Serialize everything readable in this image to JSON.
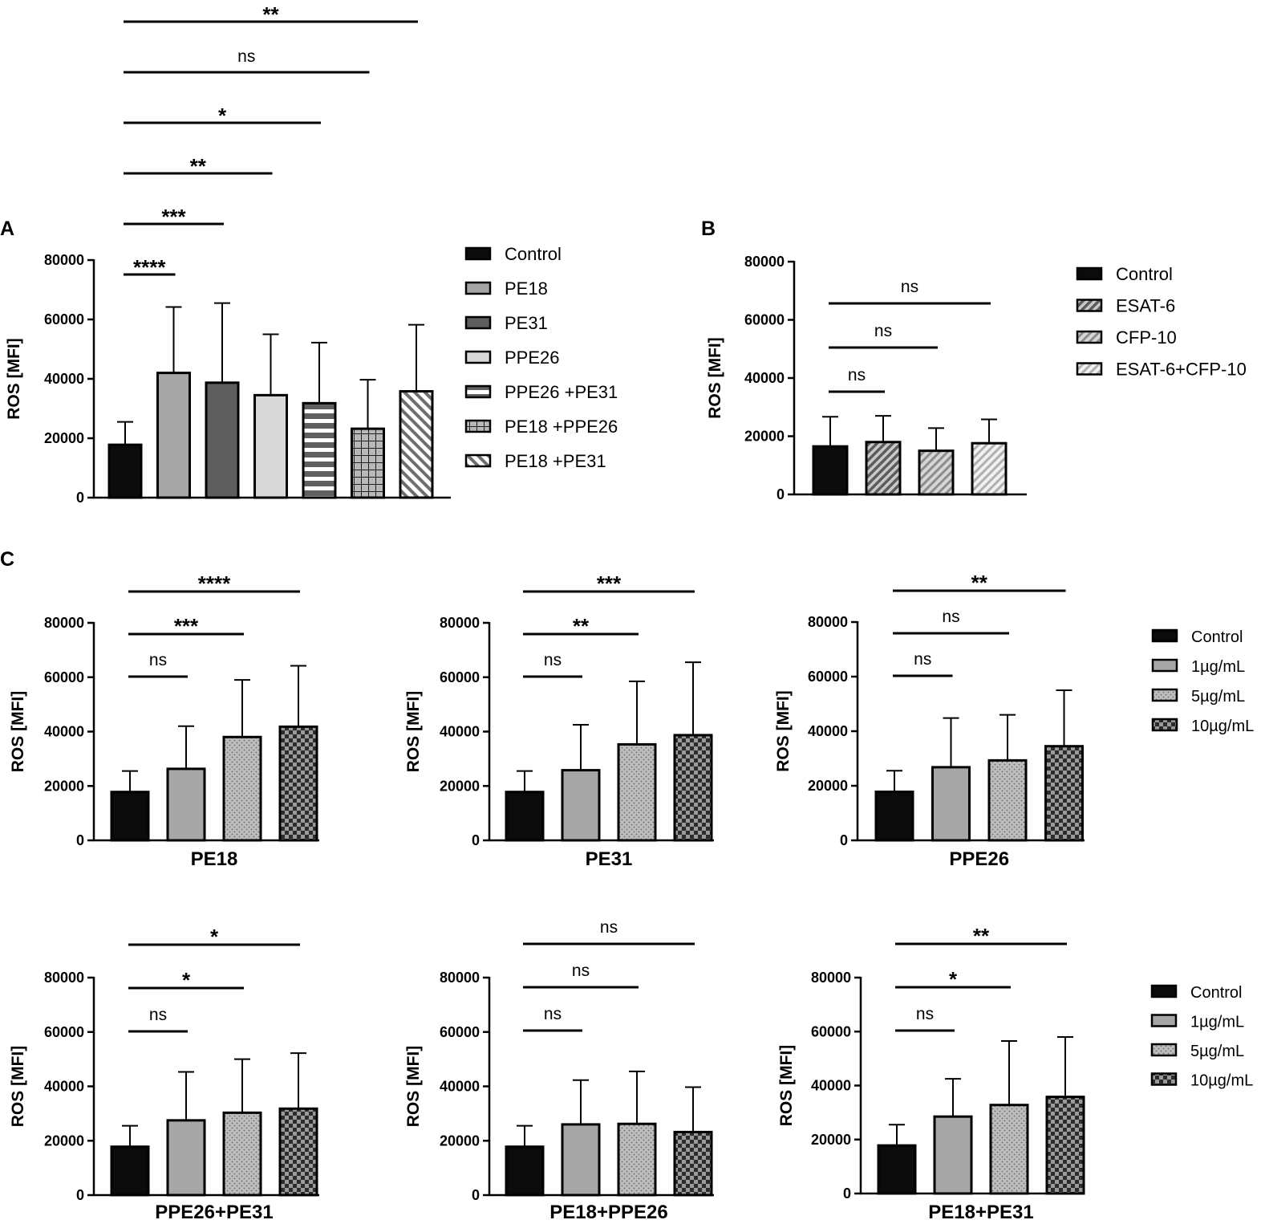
{
  "figure": {
    "panel_labels": {
      "A": "A",
      "B": "B",
      "C": "C"
    },
    "y_ticks": [
      "0",
      "20000",
      "40000",
      "60000",
      "80000"
    ]
  },
  "colors": {
    "black": "#0b0b0b",
    "mid_gray": "#a6a6a6",
    "dark_gray": "#5e5e5e",
    "light_gray": "#d9d9d9",
    "stripe_light": "#ffffff",
    "checker_dark": "#2a2a2a"
  },
  "chart_data": [
    {
      "id": "A",
      "type": "bar",
      "title": "",
      "ylabel": "ROS [MFI]",
      "xlabel": "",
      "ylim": [
        0,
        80000
      ],
      "categories": [
        "Control",
        "PE18",
        "PE31",
        "PPE26",
        "PPE26 +PE31",
        "PE18 +PPE26",
        "PE18 +PE31"
      ],
      "values": [
        17800,
        42000,
        38700,
        34500,
        31800,
        23200,
        35800
      ],
      "error_upper": [
        25500,
        64200,
        65500,
        55000,
        52200,
        39700,
        58200
      ],
      "patterns": [
        "solid-black",
        "solid-mid",
        "solid-dark",
        "solid-light",
        "hstripe",
        "grid",
        "diagonal"
      ],
      "legend": [
        "Control",
        "PE18",
        "PE31",
        "PPE26",
        "PPE26 +PE31",
        "PE18 +PPE26",
        "PE18 +PE31"
      ],
      "significance": [
        {
          "from": 0,
          "to": 1,
          "label": "****"
        },
        {
          "from": 0,
          "to": 2,
          "label": "***"
        },
        {
          "from": 0,
          "to": 3,
          "label": "**"
        },
        {
          "from": 0,
          "to": 4,
          "label": "*"
        },
        {
          "from": 0,
          "to": 5,
          "label": "ns"
        },
        {
          "from": 0,
          "to": 6,
          "label": "**"
        }
      ]
    },
    {
      "id": "B",
      "type": "bar",
      "title": "",
      "ylabel": "ROS [MFI]",
      "xlabel": "",
      "ylim": [
        0,
        80000
      ],
      "categories": [
        "Control",
        "ESAT-6",
        "CFP-10",
        "ESAT-6+CFP-10"
      ],
      "values": [
        16500,
        18000,
        15000,
        17600
      ],
      "error_upper": [
        26700,
        27000,
        22800,
        25800
      ],
      "patterns": [
        "solid-black",
        "diag-dark",
        "diag-mid",
        "diag-light"
      ],
      "legend": [
        "Control",
        "ESAT-6",
        "CFP-10",
        "ESAT-6+CFP-10"
      ],
      "significance": [
        {
          "from": 0,
          "to": 1,
          "label": "ns"
        },
        {
          "from": 0,
          "to": 2,
          "label": "ns"
        },
        {
          "from": 0,
          "to": 3,
          "label": "ns"
        }
      ]
    },
    {
      "id": "C1",
      "type": "bar",
      "ylabel": "ROS [MFI]",
      "xlabel": "PE18",
      "ylim": [
        0,
        80000
      ],
      "categories": [
        "Control",
        "1µg/mL",
        "5µg/mL",
        "10µg/mL"
      ],
      "values": [
        17800,
        26300,
        38000,
        41800
      ],
      "error_upper": [
        25500,
        42000,
        59000,
        64200
      ],
      "patterns": [
        "solid-black",
        "solid-mid",
        "dots",
        "checker"
      ],
      "significance": [
        {
          "from": 0,
          "to": 1,
          "label": "ns"
        },
        {
          "from": 0,
          "to": 2,
          "label": "***"
        },
        {
          "from": 0,
          "to": 3,
          "label": "****"
        }
      ]
    },
    {
      "id": "C2",
      "type": "bar",
      "ylabel": "ROS [MFI]",
      "xlabel": "PE31",
      "ylim": [
        0,
        80000
      ],
      "categories": [
        "Control",
        "1µg/mL",
        "5µg/mL",
        "10µg/mL"
      ],
      "values": [
        17800,
        25800,
        35300,
        38700
      ],
      "error_upper": [
        25500,
        42500,
        58500,
        65500
      ],
      "patterns": [
        "solid-black",
        "solid-mid",
        "dots",
        "checker"
      ],
      "significance": [
        {
          "from": 0,
          "to": 1,
          "label": "ns"
        },
        {
          "from": 0,
          "to": 2,
          "label": "**"
        },
        {
          "from": 0,
          "to": 3,
          "label": "***"
        }
      ]
    },
    {
      "id": "C3",
      "type": "bar",
      "ylabel": "ROS [MFI]",
      "xlabel": "PPE26",
      "ylim": [
        0,
        80000
      ],
      "categories": [
        "Control",
        "1µg/mL",
        "5µg/mL",
        "10µg/mL"
      ],
      "values": [
        17800,
        26800,
        29300,
        34500
      ],
      "error_upper": [
        25500,
        44800,
        46000,
        55000
      ],
      "patterns": [
        "solid-black",
        "solid-mid",
        "dots",
        "checker"
      ],
      "significance": [
        {
          "from": 0,
          "to": 1,
          "label": "ns"
        },
        {
          "from": 0,
          "to": 2,
          "label": "ns"
        },
        {
          "from": 0,
          "to": 3,
          "label": "**"
        }
      ]
    },
    {
      "id": "C4",
      "type": "bar",
      "ylabel": "ROS [MFI]",
      "xlabel": "PPE26+PE31",
      "ylim": [
        0,
        80000
      ],
      "categories": [
        "Control",
        "1µg/mL",
        "5µg/mL",
        "10µg/mL"
      ],
      "values": [
        17800,
        27500,
        30300,
        31800
      ],
      "error_upper": [
        25500,
        45300,
        50000,
        52200
      ],
      "patterns": [
        "solid-black",
        "solid-mid",
        "dots",
        "checker"
      ],
      "significance": [
        {
          "from": 0,
          "to": 1,
          "label": "ns"
        },
        {
          "from": 0,
          "to": 2,
          "label": "*"
        },
        {
          "from": 0,
          "to": 3,
          "label": "*"
        }
      ]
    },
    {
      "id": "C5",
      "type": "bar",
      "ylabel": "ROS [MFI]",
      "xlabel": "PE18+PPE26",
      "ylim": [
        0,
        80000
      ],
      "categories": [
        "Control",
        "1µg/mL",
        "5µg/mL",
        "10µg/mL"
      ],
      "values": [
        17800,
        26000,
        26200,
        23200
      ],
      "error_upper": [
        25500,
        42300,
        45500,
        39700
      ],
      "patterns": [
        "solid-black",
        "solid-mid",
        "dots",
        "checker"
      ],
      "significance": [
        {
          "from": 0,
          "to": 1,
          "label": "ns"
        },
        {
          "from": 0,
          "to": 2,
          "label": "ns"
        },
        {
          "from": 0,
          "to": 3,
          "label": "ns"
        }
      ]
    },
    {
      "id": "C6",
      "type": "bar",
      "ylabel": "ROS [MFI]",
      "xlabel": "PE18+PE31",
      "ylim": [
        0,
        80000
      ],
      "categories": [
        "Control",
        "1µg/mL",
        "5µg/mL",
        "10µg/mL"
      ],
      "values": [
        17800,
        28500,
        32800,
        35800
      ],
      "error_upper": [
        25500,
        42500,
        56500,
        58000
      ],
      "patterns": [
        "solid-black",
        "solid-mid",
        "dots",
        "checker"
      ],
      "significance": [
        {
          "from": 0,
          "to": 1,
          "label": "ns"
        },
        {
          "from": 0,
          "to": 2,
          "label": "*"
        },
        {
          "from": 0,
          "to": 3,
          "label": "**"
        }
      ]
    }
  ],
  "legend_C": [
    "Control",
    "1µg/mL",
    "5µg/mL",
    "10µg/mL"
  ]
}
